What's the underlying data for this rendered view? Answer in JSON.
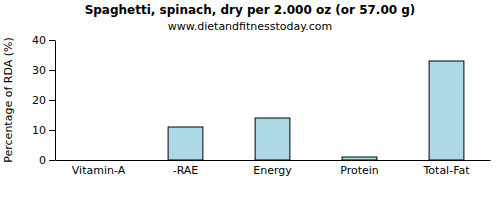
{
  "chart_data": {
    "type": "bar",
    "title": "Spaghetti, spinach, dry per 2.000 oz (or 57.00 g)",
    "subtitle": "www.dietandfitnesstoday.com",
    "y_label": "Percentage of RDA (%)",
    "categories": [
      "Vitamin-A",
      "-RAE",
      "Energy",
      "Protein",
      "Total-Fat"
    ],
    "values": [
      0,
      11,
      14,
      1,
      33
    ],
    "color": "#add8e6",
    "ylim": [
      0,
      40
    ],
    "yticks": [
      0,
      10,
      20,
      30,
      40
    ],
    "grid": false
  }
}
